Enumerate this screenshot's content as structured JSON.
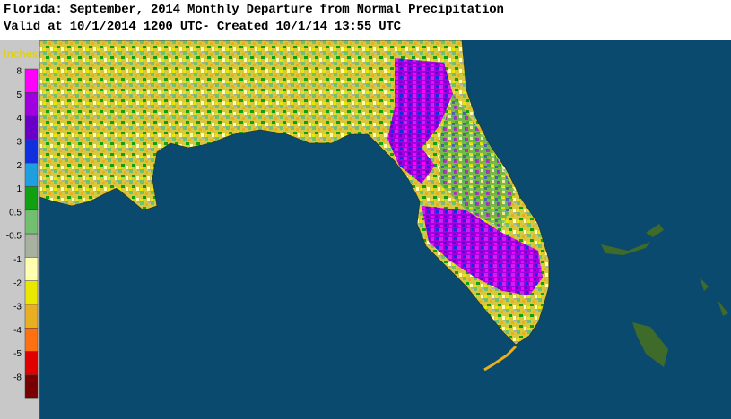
{
  "header": {
    "title": "Florida: September, 2014 Monthly Departure from Normal Precipitation",
    "subtitle": "Valid at 10/1/2014 1200 UTC- Created 10/1/14 13:55 UTC"
  },
  "legend": {
    "title": "Inches",
    "items": [
      {
        "label": "8",
        "color": "#ff00ff"
      },
      {
        "label": "5",
        "color": "#a000e0"
      },
      {
        "label": "4",
        "color": "#6a00c8"
      },
      {
        "label": "3",
        "color": "#1030e0"
      },
      {
        "label": "2",
        "color": "#1ea0e0"
      },
      {
        "label": "1",
        "color": "#10a010"
      },
      {
        "label": "0.5",
        "color": "#70c070"
      },
      {
        "label": "-0.5",
        "color": "#a8b0a0"
      },
      {
        "label": "-1",
        "color": "#ffffb0"
      },
      {
        "label": "-2",
        "color": "#e8e800"
      },
      {
        "label": "-3",
        "color": "#e8b020"
      },
      {
        "label": "-4",
        "color": "#ff7010"
      },
      {
        "label": "-5",
        "color": "#e00000"
      },
      {
        "label": "-8",
        "color": "#780000"
      }
    ]
  }
}
